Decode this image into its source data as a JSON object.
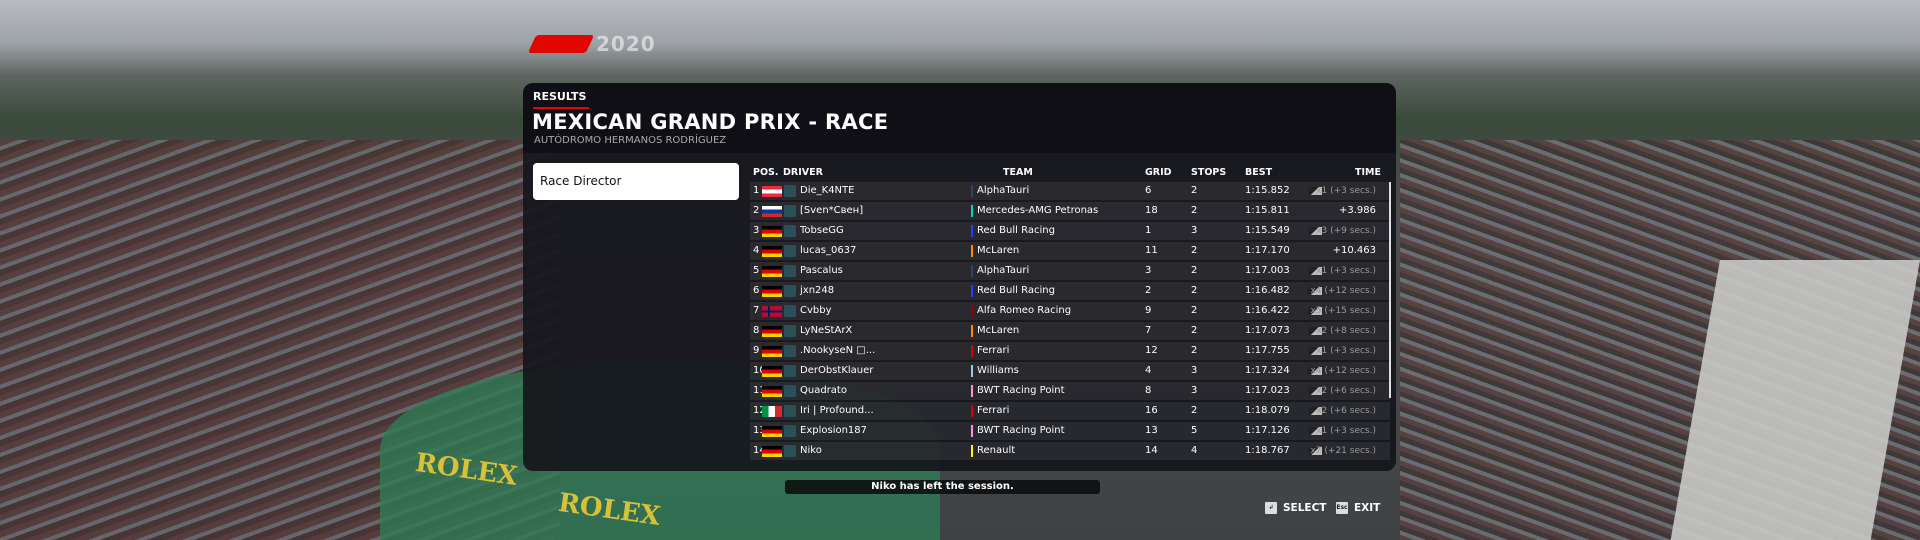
{
  "logo": {
    "text": "2020"
  },
  "header": {
    "section": "RESULTS",
    "title": "MEXICAN GRAND PRIX - RACE",
    "subtitle": "AUTÓDROMO HERMANOS RODRÍGUEZ"
  },
  "sidebar": {
    "race_director": "Race Director"
  },
  "table": {
    "columns": [
      "POS.",
      "DRIVER",
      "TEAM",
      "GRID",
      "STOPS",
      "BEST",
      "TIME"
    ],
    "rows": [
      {
        "pos": "1",
        "flag": "austria",
        "driver": "Die_K4NTE",
        "team": "AlphaTauri",
        "team_color": "#2b4562",
        "grid": "6",
        "stops": "2",
        "best": "1:15.852",
        "time": "x1 (+3 secs.)",
        "tyre": true
      },
      {
        "pos": "2",
        "flag": "russia",
        "driver": "[Sven*Свен]",
        "team": "Mercedes-AMG Petronas",
        "team_color": "#00d2be",
        "grid": "18",
        "stops": "2",
        "best": "1:15.811",
        "time": "+3.986",
        "tyre": false
      },
      {
        "pos": "3",
        "flag": "germany",
        "driver": "TobseGG",
        "team": "Red Bull Racing",
        "team_color": "#1e41ff",
        "grid": "1",
        "stops": "3",
        "best": "1:15.549",
        "time": "x3 (+9 secs.)",
        "tyre": true
      },
      {
        "pos": "4",
        "flag": "germany",
        "driver": "lucas_0637",
        "team": "McLaren",
        "team_color": "#ff8700",
        "grid": "11",
        "stops": "2",
        "best": "1:17.170",
        "time": "+10.463",
        "tyre": false
      },
      {
        "pos": "5",
        "flag": "germany",
        "driver": "Pascalus",
        "team": "AlphaTauri",
        "team_color": "#2b4562",
        "grid": "3",
        "stops": "2",
        "best": "1:17.003",
        "time": "x1 (+3 secs.)",
        "tyre": true
      },
      {
        "pos": "6",
        "flag": "germany",
        "driver": "jxn248",
        "team": "Red Bull Racing",
        "team_color": "#1e41ff",
        "grid": "2",
        "stops": "2",
        "best": "1:16.482",
        "time": "x4 (+12 secs.)",
        "tyre": true
      },
      {
        "pos": "7",
        "flag": "norway",
        "driver": "Cvbby",
        "team": "Alfa Romeo Racing",
        "team_color": "#9b0000",
        "grid": "9",
        "stops": "2",
        "best": "1:16.422",
        "time": "x5 (+15 secs.)",
        "tyre": true
      },
      {
        "pos": "8",
        "flag": "germany",
        "driver": "LyNeStArX",
        "team": "McLaren",
        "team_color": "#ff8700",
        "grid": "7",
        "stops": "2",
        "best": "1:17.073",
        "time": "x2 (+8 secs.)",
        "tyre": true
      },
      {
        "pos": "9",
        "flag": "germany",
        "driver": ".NookyseN □...",
        "team": "Ferrari",
        "team_color": "#dc0000",
        "grid": "12",
        "stops": "2",
        "best": "1:17.755",
        "time": "x1 (+3 secs.)",
        "tyre": true
      },
      {
        "pos": "10",
        "flag": "germany",
        "driver": "DerObstKlauer",
        "team": "Williams",
        "team_color": "#9cc8ea",
        "grid": "4",
        "stops": "3",
        "best": "1:17.324",
        "time": "x4 (+12 secs.)",
        "tyre": true
      },
      {
        "pos": "11",
        "flag": "germany",
        "driver": "Quadrato",
        "team": "BWT Racing Point",
        "team_color": "#f596c8",
        "grid": "8",
        "stops": "3",
        "best": "1:17.023",
        "time": "x2 (+6 secs.)",
        "tyre": true
      },
      {
        "pos": "12",
        "flag": "italy",
        "driver": "Iri | Profound...",
        "team": "Ferrari",
        "team_color": "#dc0000",
        "grid": "16",
        "stops": "2",
        "best": "1:18.079",
        "time": "x2 (+6 secs.)",
        "tyre": true
      },
      {
        "pos": "13",
        "flag": "germany",
        "driver": "Explosion187",
        "team": "BWT Racing Point",
        "team_color": "#f596c8",
        "grid": "13",
        "stops": "5",
        "best": "1:17.126",
        "time": "x1 (+3 secs.)",
        "tyre": true
      },
      {
        "pos": "14",
        "flag": "germany",
        "driver": "Niko",
        "team": "Renault",
        "team_color": "#fff500",
        "grid": "14",
        "stops": "4",
        "best": "1:18.767",
        "time": "x7 (+21 secs.)",
        "tyre": true
      }
    ]
  },
  "toast": "Niko has left the session.",
  "controls": {
    "select_key": "↲",
    "select": "SELECT",
    "exit_key": "Esc",
    "exit": "EXIT"
  },
  "scenery": {
    "sign1": "ROLEX",
    "sign2": "ROLEX"
  }
}
